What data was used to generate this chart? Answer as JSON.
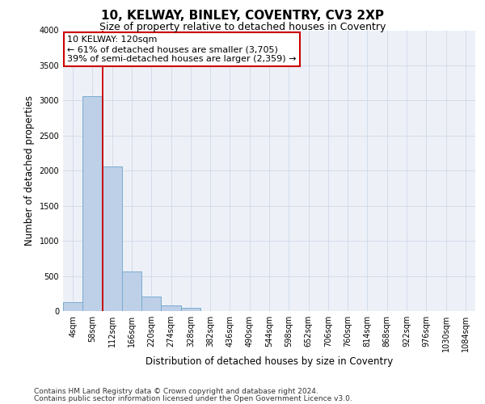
{
  "title": "10, KELWAY, BINLEY, COVENTRY, CV3 2XP",
  "subtitle": "Size of property relative to detached houses in Coventry",
  "xlabel": "Distribution of detached houses by size in Coventry",
  "ylabel": "Number of detached properties",
  "categories": [
    "4sqm",
    "58sqm",
    "112sqm",
    "166sqm",
    "220sqm",
    "274sqm",
    "328sqm",
    "382sqm",
    "436sqm",
    "490sqm",
    "544sqm",
    "598sqm",
    "652sqm",
    "706sqm",
    "760sqm",
    "814sqm",
    "868sqm",
    "922sqm",
    "976sqm",
    "1030sqm",
    "1084sqm"
  ],
  "values": [
    130,
    3060,
    2060,
    560,
    210,
    75,
    50,
    0,
    0,
    0,
    0,
    0,
    0,
    0,
    0,
    0,
    0,
    0,
    0,
    0,
    0
  ],
  "bar_color": "#bdd0e8",
  "bar_edge_color": "#7aaad0",
  "vline_x": 1.5,
  "vline_color": "#cc0000",
  "annotation_text": "10 KELWAY: 120sqm\n← 61% of detached houses are smaller (3,705)\n39% of semi-detached houses are larger (2,359) →",
  "annotation_box_color": "#ffffff",
  "annotation_box_edge_color": "#cc0000",
  "ylim": [
    0,
    4000
  ],
  "yticks": [
    0,
    500,
    1000,
    1500,
    2000,
    2500,
    3000,
    3500,
    4000
  ],
  "grid_color": "#d0d8e8",
  "background_color": "#edf1f7",
  "footer_line1": "Contains HM Land Registry data © Crown copyright and database right 2024.",
  "footer_line2": "Contains public sector information licensed under the Open Government Licence v3.0.",
  "title_fontsize": 11,
  "subtitle_fontsize": 9,
  "label_fontsize": 8.5,
  "tick_fontsize": 7,
  "annotation_fontsize": 8,
  "footer_fontsize": 6.5
}
